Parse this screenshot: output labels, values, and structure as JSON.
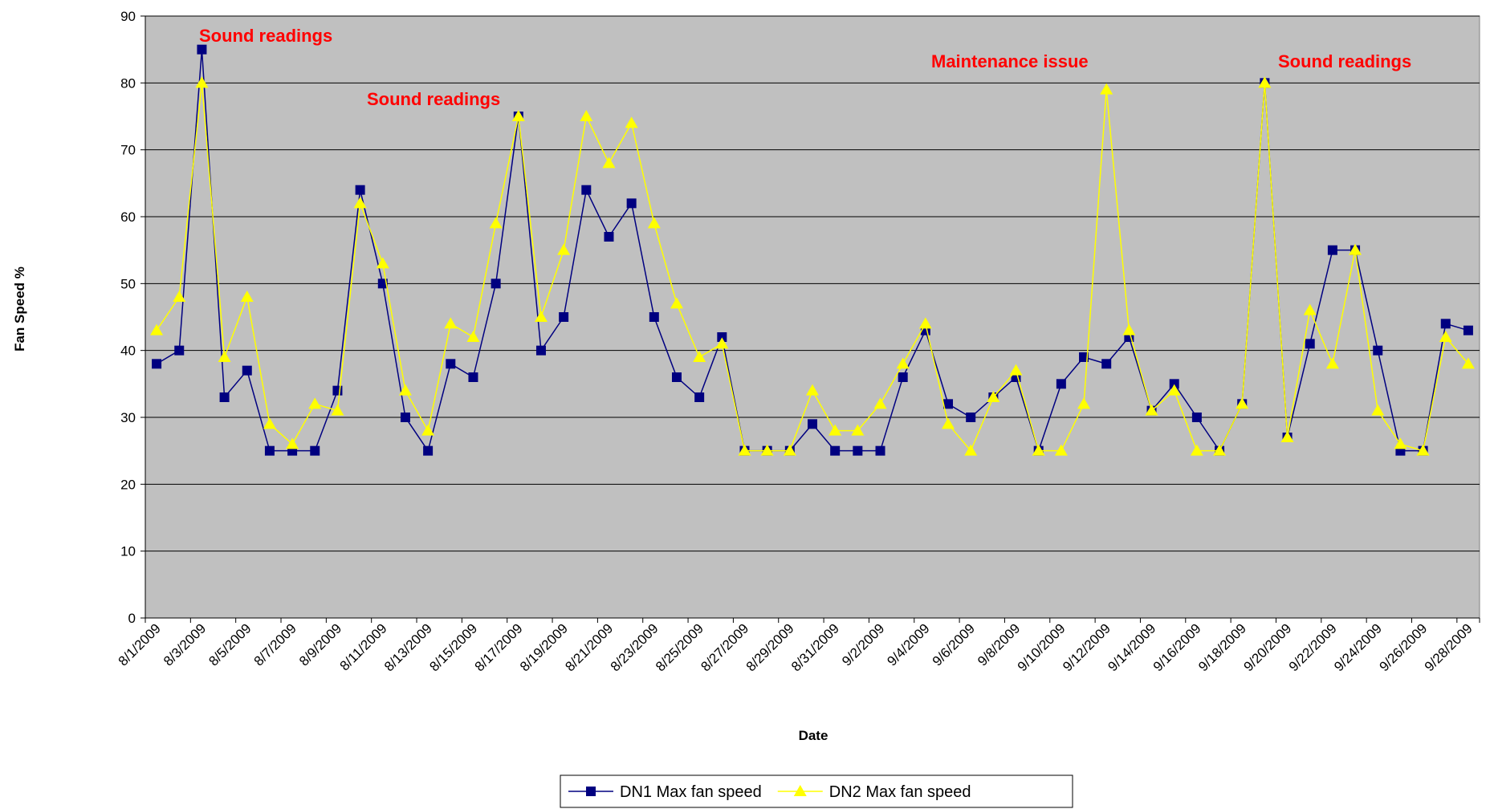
{
  "chart_data": {
    "type": "line",
    "x_label": "Date",
    "y_label": "Fan Speed %",
    "annotations": [
      "Sound readings",
      "Sound readings",
      "Maintenance issue",
      "Sound readings"
    ],
    "categories": [
      "8/1/2009",
      null,
      "8/3/2009",
      null,
      "8/5/2009",
      null,
      "8/7/2009",
      null,
      "8/9/2009",
      null,
      "8/11/2009",
      null,
      "8/13/2009",
      null,
      "8/15/2009",
      null,
      "8/17/2009",
      null,
      "8/19/2009",
      null,
      "8/21/2009",
      null,
      "8/23/2009",
      null,
      "8/25/2009",
      null,
      "8/27/2009",
      null,
      "8/29/2009",
      null,
      "8/31/2009",
      null,
      "9/2/2009",
      null,
      "9/4/2009",
      null,
      "9/6/2009",
      null,
      "9/8/2009",
      null,
      "9/10/2009",
      null,
      "9/12/2009",
      null,
      "9/14/2009",
      null,
      "9/16/2009",
      null,
      "9/18/2009",
      null,
      "9/20/2009",
      null,
      "9/22/2009",
      null,
      "9/24/2009",
      null,
      "9/26/2009",
      null,
      "9/28/2009"
    ],
    "series": [
      {
        "name": "DN1 Max fan speed",
        "color": "#000080",
        "marker": "square",
        "values": [
          38,
          40,
          85,
          33,
          37,
          25,
          25,
          25,
          34,
          64,
          50,
          30,
          25,
          38,
          36,
          50,
          75,
          40,
          45,
          64,
          57,
          62,
          45,
          36,
          33,
          42,
          25,
          25,
          25,
          29,
          25,
          25,
          25,
          36,
          43,
          32,
          30,
          33,
          36,
          25,
          35,
          39,
          38,
          42,
          31,
          35,
          30,
          25,
          32,
          80,
          27,
          41,
          55,
          55,
          40,
          25,
          25,
          44,
          43
        ]
      },
      {
        "name": "DN2 Max fan speed",
        "color": "#ffff00",
        "marker": "triangle",
        "values": [
          43,
          48,
          80,
          39,
          48,
          29,
          26,
          32,
          31,
          62,
          53,
          34,
          28,
          44,
          42,
          59,
          75,
          45,
          55,
          75,
          68,
          74,
          59,
          47,
          39,
          41,
          25,
          25,
          25,
          34,
          28,
          28,
          32,
          38,
          44,
          29,
          25,
          33,
          37,
          25,
          25,
          32,
          79,
          43,
          31,
          34,
          25,
          25,
          32,
          80,
          27,
          46,
          38,
          55,
          31,
          26,
          25,
          42,
          38
        ]
      }
    ],
    "ylim": [
      0,
      90
    ],
    "yticks": [
      0,
      10,
      20,
      30,
      40,
      50,
      60,
      70,
      80,
      90
    ],
    "grid": true,
    "plot_background": "#c0c0c0",
    "annotation_color": "#ff0000",
    "legend": "bottom"
  }
}
